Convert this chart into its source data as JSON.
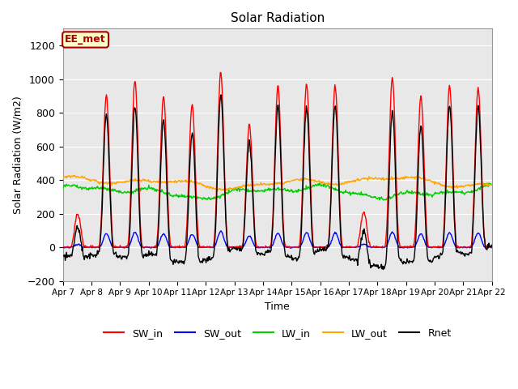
{
  "title": "Solar Radiation",
  "xlabel": "Time",
  "ylabel": "Solar Radiation (W/m2)",
  "ylim": [
    -200,
    1300
  ],
  "yticks": [
    -200,
    0,
    200,
    400,
    600,
    800,
    1000,
    1200
  ],
  "xticklabels": [
    "Apr 7",
    "Apr 8",
    "Apr 9",
    "Apr 10",
    "Apr 11",
    "Apr 12",
    "Apr 13",
    "Apr 14",
    "Apr 15",
    "Apr 16",
    "Apr 17",
    "Apr 18",
    "Apr 19",
    "Apr 20",
    "Apr 21",
    "Apr 22"
  ],
  "n_days": 15,
  "annotation_text": "EE_met",
  "annotation_bg": "#FFFFCC",
  "annotation_border": "#AA0000",
  "annotation_text_color": "#AA0000",
  "color_SW_in": "#FF0000",
  "color_SW_out": "#0000FF",
  "color_LW_in": "#00CC00",
  "color_LW_out": "#FFA500",
  "color_Rnet": "#000000",
  "background_color": "#FFFFFF",
  "shaded_bg": "#E8E8E8",
  "day_peaks": [
    200,
    900,
    990,
    900,
    850,
    1040,
    730,
    960,
    970,
    960,
    210,
    1010,
    900,
    960,
    950
  ],
  "night_rnet": -60,
  "lw_in_base": 330,
  "lw_out_base": 380,
  "line_width": 1.0
}
